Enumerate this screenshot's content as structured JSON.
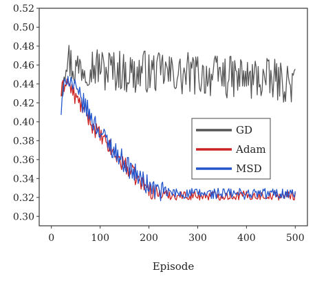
{
  "chart_data": {
    "type": "line",
    "title": "",
    "xlabel": "Episode",
    "ylabel": "",
    "xlim": [
      -25,
      525
    ],
    "ylim": [
      0.29,
      0.52
    ],
    "xticks": [
      0,
      100,
      200,
      300,
      400,
      500
    ],
    "yticks": [
      0.3,
      0.32,
      0.34,
      0.36,
      0.38,
      0.4,
      0.42,
      0.44,
      0.46,
      0.48,
      0.5,
      0.52
    ],
    "legend_position": "center-right",
    "grid": false,
    "series": [
      {
        "name": "GD",
        "color": "#555555",
        "x": [
          20,
          30,
          40,
          50,
          60,
          70,
          80,
          90,
          100,
          110,
          120,
          130,
          140,
          150,
          160,
          170,
          180,
          190,
          200,
          210,
          220,
          230,
          240,
          250,
          260,
          270,
          280,
          290,
          300,
          310,
          320,
          330,
          340,
          350,
          360,
          370,
          380,
          390,
          400,
          410,
          420,
          430,
          440,
          450,
          460,
          470,
          480,
          490,
          500
        ],
        "y": [
          0.44,
          0.47,
          0.462,
          0.455,
          0.46,
          0.458,
          0.462,
          0.457,
          0.46,
          0.452,
          0.458,
          0.453,
          0.456,
          0.45,
          0.454,
          0.449,
          0.452,
          0.456,
          0.45,
          0.453,
          0.451,
          0.455,
          0.449,
          0.452,
          0.45,
          0.447,
          0.452,
          0.449,
          0.451,
          0.448,
          0.45,
          0.447,
          0.449,
          0.451,
          0.446,
          0.448,
          0.445,
          0.449,
          0.446,
          0.443,
          0.448,
          0.444,
          0.446,
          0.442,
          0.445,
          0.441,
          0.443,
          0.44,
          0.438
        ],
        "noise": 0.022
      },
      {
        "name": "Adam",
        "color": "#cc2222",
        "x": [
          20,
          30,
          40,
          50,
          60,
          70,
          80,
          90,
          100,
          110,
          120,
          130,
          140,
          150,
          160,
          170,
          180,
          190,
          200,
          210,
          220,
          230,
          240,
          250,
          260,
          270,
          280,
          290,
          300,
          310,
          320,
          330,
          340,
          350,
          360,
          370,
          380,
          390,
          400,
          410,
          420,
          430,
          440,
          450,
          460,
          470,
          480,
          490,
          500
        ],
        "y": [
          0.43,
          0.445,
          0.435,
          0.425,
          0.418,
          0.41,
          0.4,
          0.392,
          0.385,
          0.378,
          0.372,
          0.365,
          0.36,
          0.354,
          0.349,
          0.343,
          0.338,
          0.333,
          0.329,
          0.326,
          0.324,
          0.323,
          0.323,
          0.322,
          0.322,
          0.322,
          0.322,
          0.322,
          0.322,
          0.322,
          0.322,
          0.322,
          0.322,
          0.322,
          0.322,
          0.322,
          0.322,
          0.322,
          0.322,
          0.322,
          0.322,
          0.322,
          0.322,
          0.322,
          0.322,
          0.322,
          0.322,
          0.322,
          0.322
        ],
        "noise": 0.009
      },
      {
        "name": "MSD",
        "color": "#2255cc",
        "x": [
          20,
          30,
          40,
          50,
          60,
          70,
          80,
          90,
          100,
          110,
          120,
          130,
          140,
          150,
          160,
          170,
          180,
          190,
          200,
          210,
          220,
          230,
          240,
          250,
          260,
          270,
          280,
          290,
          300,
          310,
          320,
          330,
          340,
          350,
          360,
          370,
          380,
          390,
          400,
          410,
          420,
          430,
          440,
          450,
          460,
          470,
          480,
          490,
          500
        ],
        "y": [
          0.41,
          0.45,
          0.443,
          0.432,
          0.424,
          0.416,
          0.406,
          0.397,
          0.39,
          0.382,
          0.376,
          0.369,
          0.363,
          0.357,
          0.351,
          0.346,
          0.341,
          0.336,
          0.332,
          0.329,
          0.327,
          0.326,
          0.325,
          0.325,
          0.324,
          0.324,
          0.324,
          0.324,
          0.324,
          0.324,
          0.324,
          0.324,
          0.324,
          0.324,
          0.324,
          0.324,
          0.324,
          0.324,
          0.324,
          0.324,
          0.324,
          0.324,
          0.324,
          0.324,
          0.324,
          0.324,
          0.324,
          0.324,
          0.324
        ],
        "noise": 0.011
      }
    ]
  }
}
